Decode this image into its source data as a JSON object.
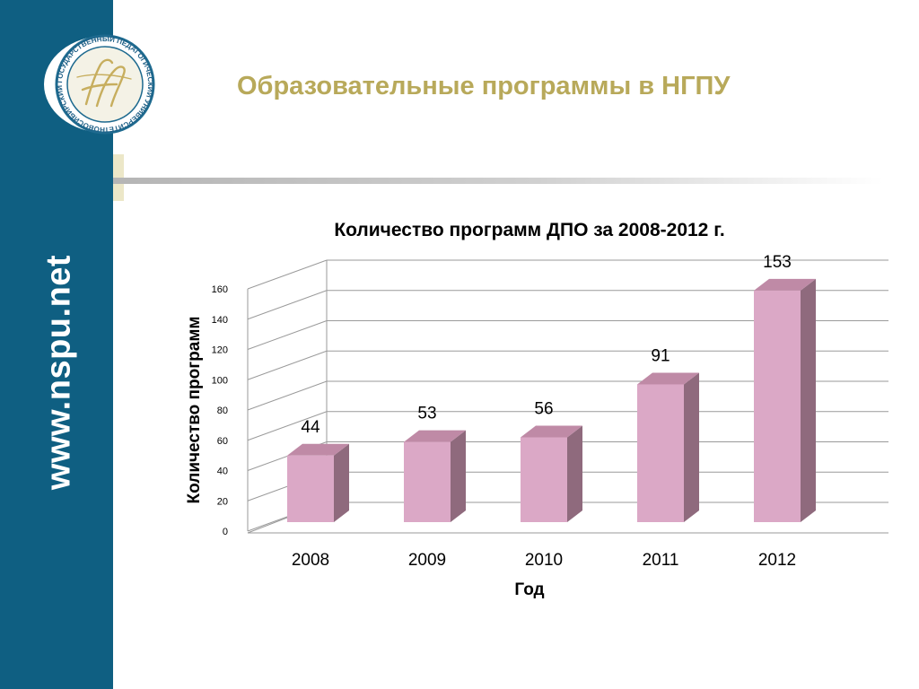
{
  "sidebar": {
    "url": "www.nspu.net"
  },
  "logo": {
    "ring_text": "НОВОСИБИРСКИЙ ГОСУДАРСТВЕННЫЙ ПЕДАГОГИЧЕСКИЙ УНИВЕРСИТЕТ"
  },
  "slide": {
    "title": "Образовательные программы в НГПУ"
  },
  "colors": {
    "sidebar": "#0f5f82",
    "title": "#b8a95a",
    "bar_front": "#dba8c6",
    "bar_side": "#8f6a7d",
    "bar_top": "#bf8aa6"
  },
  "chart_data": {
    "type": "bar",
    "title": "Количество программ ДПО за 2008-2012 г.",
    "xlabel": "Год",
    "ylabel": "Количество программ",
    "categories": [
      "2008",
      "2009",
      "2010",
      "2011",
      "2012"
    ],
    "values": [
      44,
      53,
      56,
      91,
      153
    ],
    "ylim": [
      0,
      160
    ],
    "yticks": [
      0,
      20,
      40,
      60,
      80,
      100,
      120,
      140,
      160
    ],
    "grid": true,
    "style": "3d"
  }
}
